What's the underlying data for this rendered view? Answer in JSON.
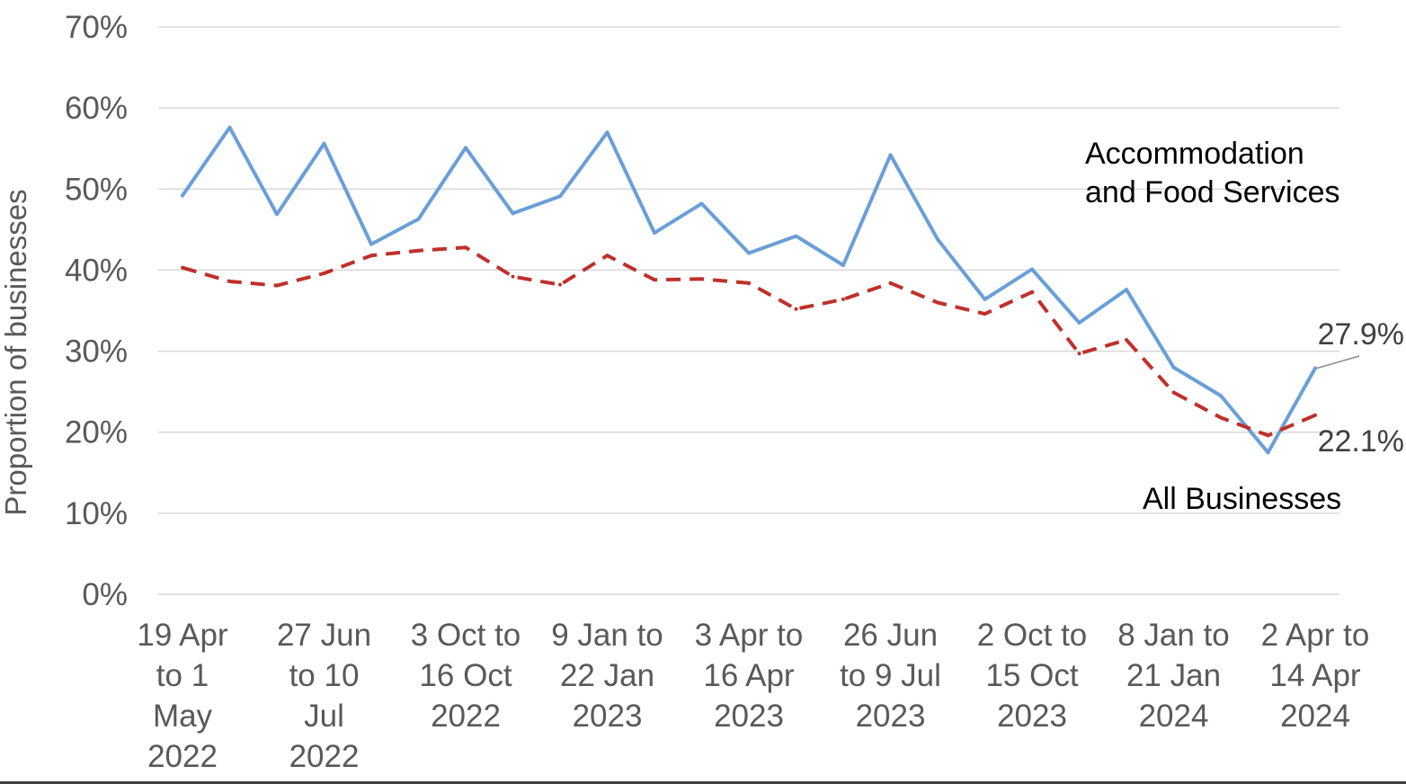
{
  "chart_data": {
    "type": "line",
    "ylabel": "Proportion of businesses",
    "xlabel": "",
    "ylim": [
      0,
      70
    ],
    "y_ticks": [
      "0%",
      "10%",
      "20%",
      "30%",
      "40%",
      "50%",
      "60%",
      "70%"
    ],
    "grid": "horizontal",
    "x_tick_labels": [
      [
        "19 Apr",
        "to 1",
        "May",
        "2022"
      ],
      [
        "27 Jun",
        "to 10",
        "Jul",
        "2022"
      ],
      [
        "3 Oct to",
        "16 Oct",
        "2022"
      ],
      [
        "9 Jan to",
        "22 Jan",
        "2023"
      ],
      [
        "3 Apr to",
        "16 Apr",
        "2023"
      ],
      [
        "26 Jun",
        "to 9 Jul",
        "2023"
      ],
      [
        "2 Oct to",
        "15 Oct",
        "2023"
      ],
      [
        "8 Jan to",
        "21 Jan",
        "2024"
      ],
      [
        "2 Apr to",
        "14 Apr",
        "2024"
      ]
    ],
    "series": [
      {
        "name": "Accommodation and Food Services",
        "label_lines": [
          "Accommodation",
          "and Food Services"
        ],
        "color": "#6a9fd8",
        "style": "solid",
        "values": [
          49.2,
          57.6,
          46.9,
          55.6,
          43.2,
          46.3,
          55.1,
          47.0,
          49.1,
          57.0,
          44.6,
          48.2,
          42.1,
          44.2,
          40.6,
          54.2,
          43.8,
          36.4,
          40.1,
          33.5,
          37.6,
          28.0,
          24.5,
          17.5,
          27.9
        ],
        "end_label": "27.9%"
      },
      {
        "name": "All Businesses",
        "label_lines": [
          "All Businesses"
        ],
        "color": "#c0302b",
        "style": "dashed",
        "values": [
          40.3,
          38.6,
          38.1,
          39.6,
          41.8,
          42.4,
          42.8,
          39.2,
          38.2,
          41.8,
          38.8,
          38.9,
          38.4,
          35.2,
          36.4,
          38.4,
          36.0,
          34.6,
          37.3,
          29.7,
          31.4,
          24.9,
          21.8,
          19.6,
          22.1
        ],
        "end_label": "22.1%"
      }
    ]
  }
}
